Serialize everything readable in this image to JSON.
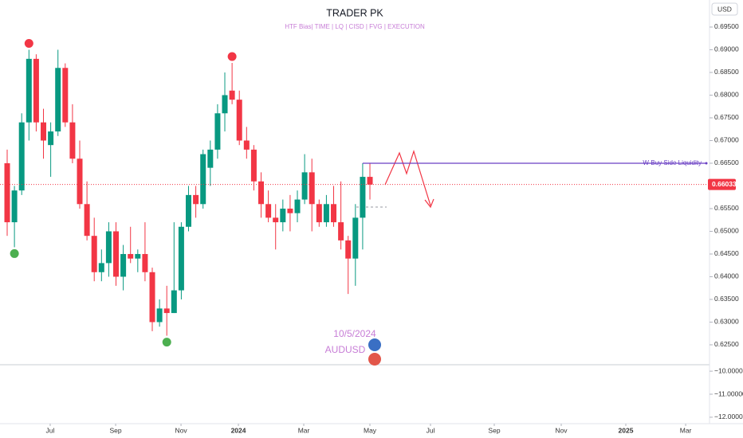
{
  "chart_data": {
    "type": "candlestick",
    "title": "TRADER PK",
    "subtitle": "HTF Bias| TIME   |   LQ   |   CISD   |   FVG   | EXECUTION",
    "symbol": "AUDUSD",
    "date_note": "10/5/2024",
    "currency": "USD",
    "up_color": "#089981",
    "down_color": "#f23645",
    "x": [
      0,
      1,
      2,
      3,
      4,
      5,
      6,
      7,
      8,
      9,
      10,
      11,
      12,
      13,
      14,
      15,
      16,
      17,
      18,
      19,
      20,
      21,
      22,
      23,
      24,
      25,
      26,
      27,
      28,
      29,
      30,
      31,
      32,
      33,
      34,
      35,
      36,
      37,
      38,
      39,
      40,
      41,
      42,
      43,
      44,
      45,
      46,
      47,
      48,
      49,
      50
    ],
    "open": [
      0.665,
      0.652,
      0.659,
      0.674,
      0.688,
      0.674,
      0.669,
      0.672,
      0.686,
      0.674,
      0.666,
      0.656,
      0.649,
      0.641,
      0.643,
      0.65,
      0.64,
      0.645,
      0.644,
      0.645,
      0.641,
      0.63,
      0.633,
      0.632,
      0.637,
      0.651,
      0.658,
      0.656,
      0.664,
      0.668,
      0.676,
      0.681,
      0.679,
      0.67,
      0.668,
      0.661,
      0.656,
      0.653,
      0.652,
      0.655,
      0.654,
      0.657,
      0.663,
      0.656,
      0.652,
      0.656,
      0.652,
      0.648,
      0.644,
      0.653,
      0.662
    ],
    "high": [
      0.668,
      0.66,
      0.676,
      0.69,
      0.689,
      0.677,
      0.674,
      0.69,
      0.687,
      0.678,
      0.67,
      0.661,
      0.653,
      0.646,
      0.652,
      0.652,
      0.647,
      0.651,
      0.646,
      0.652,
      0.642,
      0.635,
      0.638,
      0.652,
      0.652,
      0.66,
      0.66,
      0.668,
      0.67,
      0.678,
      0.685,
      0.6871,
      0.681,
      0.673,
      0.669,
      0.663,
      0.659,
      0.656,
      0.657,
      0.658,
      0.659,
      0.667,
      0.666,
      0.657,
      0.658,
      0.66,
      0.661,
      0.649,
      0.656,
      0.665,
      0.665
    ],
    "low": [
      0.649,
      0.6465,
      0.658,
      0.67,
      0.672,
      0.666,
      0.662,
      0.671,
      0.673,
      0.665,
      0.655,
      0.648,
      0.639,
      0.639,
      0.64,
      0.638,
      0.637,
      0.643,
      0.641,
      0.639,
      0.628,
      0.629,
      0.627,
      0.632,
      0.635,
      0.65,
      0.653,
      0.655,
      0.66,
      0.666,
      0.672,
      0.678,
      0.669,
      0.666,
      0.659,
      0.653,
      0.652,
      0.646,
      0.65,
      0.65,
      0.652,
      0.656,
      0.65,
      0.651,
      0.651,
      0.651,
      0.646,
      0.6362,
      0.638,
      0.646,
      0.657
    ],
    "close": [
      0.652,
      0.659,
      0.674,
      0.688,
      0.674,
      0.67,
      0.672,
      0.686,
      0.674,
      0.666,
      0.656,
      0.649,
      0.641,
      0.643,
      0.65,
      0.64,
      0.645,
      0.644,
      0.645,
      0.641,
      0.63,
      0.633,
      0.632,
      0.637,
      0.651,
      0.658,
      0.656,
      0.667,
      0.668,
      0.676,
      0.68,
      0.679,
      0.67,
      0.668,
      0.661,
      0.656,
      0.653,
      0.652,
      0.655,
      0.654,
      0.657,
      0.663,
      0.656,
      0.652,
      0.656,
      0.652,
      0.648,
      0.644,
      0.653,
      0.662,
      0.6603
    ],
    "markers": [
      {
        "x": 3,
        "value": 0.69,
        "color": "#f23645"
      },
      {
        "x": 31,
        "value": 0.6871,
        "color": "#f23645"
      },
      {
        "x": 1,
        "value": 0.6465,
        "color": "#4caf50"
      },
      {
        "x": 22,
        "value": 0.627,
        "color": "#4caf50"
      }
    ],
    "levels": [
      {
        "name": "W-Buy Side Liquidity",
        "value": 0.665,
        "start": 49,
        "color": "#6a3fc4"
      }
    ],
    "last_price": {
      "value": 0.66033,
      "label": "0.66033"
    },
    "xlim": [
      -0.99,
      96.81
    ],
    "ylim": [
      0.62061,
      0.70096
    ],
    "xticks": [
      {
        "value": 5.93,
        "label": "Jul"
      },
      {
        "value": 14.95,
        "label": "Sep"
      },
      {
        "value": 23.96,
        "label": "Nov"
      },
      {
        "value": 31.87,
        "label": "2024"
      },
      {
        "value": 40.88,
        "label": "Mar"
      },
      {
        "value": 50,
        "label": "May"
      },
      {
        "value": 58.35,
        "label": "Jul"
      },
      {
        "value": 67.14,
        "label": "Sep"
      },
      {
        "value": 76.37,
        "label": "Nov"
      },
      {
        "value": 85.27,
        "label": "2025"
      },
      {
        "value": 93.52,
        "label": "Mar"
      }
    ],
    "yticks": [
      {
        "value": 0.625,
        "label": "0.62500"
      },
      {
        "value": 0.63,
        "label": "0.63000"
      },
      {
        "value": 0.635,
        "label": "0.63500"
      },
      {
        "value": 0.64,
        "label": "0.64000"
      },
      {
        "value": 0.645,
        "label": "0.64500"
      },
      {
        "value": 0.65,
        "label": "0.65000"
      },
      {
        "value": 0.655,
        "label": "0.65500"
      },
      {
        "value": 0.665,
        "label": "0.66500"
      },
      {
        "value": 0.67,
        "label": "0.67000"
      },
      {
        "value": 0.675,
        "label": "0.67500"
      },
      {
        "value": 0.68,
        "label": "0.68000"
      },
      {
        "value": 0.685,
        "label": "0.68500"
      },
      {
        "value": 0.69,
        "label": "0.69000"
      },
      {
        "value": 0.695,
        "label": "0.69500"
      }
    ],
    "grid": false,
    "indicator_pane": {
      "ylim": [
        -9.72,
        -12.28
      ],
      "yticks": [
        {
          "value": -10,
          "label": "−10.00000"
        },
        {
          "value": -11,
          "label": "−11.00000"
        },
        {
          "value": -12,
          "label": "−12.00000"
        }
      ]
    }
  }
}
